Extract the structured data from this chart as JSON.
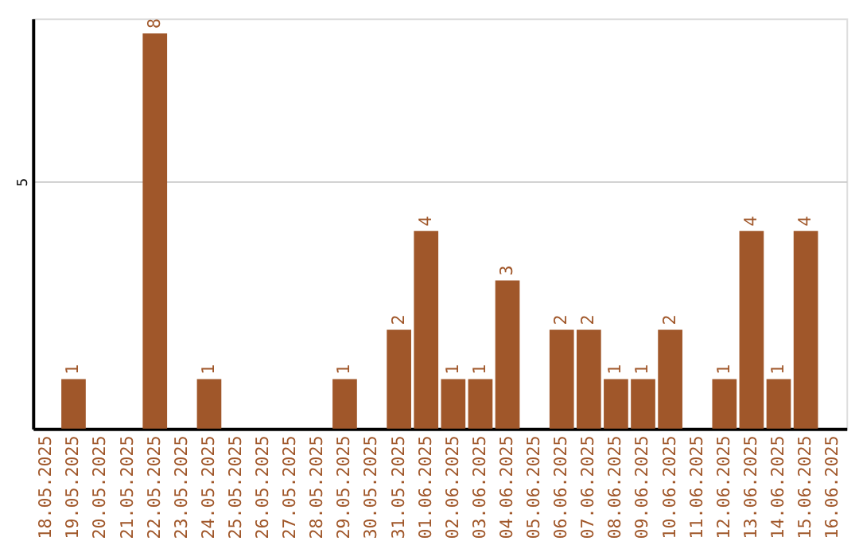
{
  "chart_data": {
    "type": "bar",
    "categories": [
      "18.05.2025",
      "19.05.2025",
      "20.05.2025",
      "21.05.2025",
      "22.05.2025",
      "23.05.2025",
      "24.05.2025",
      "25.05.2025",
      "26.05.2025",
      "27.05.2025",
      "28.05.2025",
      "29.05.2025",
      "30.05.2025",
      "31.05.2025",
      "01.06.2025",
      "02.06.2025",
      "03.06.2025",
      "04.06.2025",
      "05.06.2025",
      "06.06.2025",
      "07.06.2025",
      "08.06.2025",
      "09.06.2025",
      "10.06.2025",
      "11.06.2025",
      "12.06.2025",
      "13.06.2025",
      "14.06.2025",
      "15.06.2025",
      "16.06.2025"
    ],
    "values": [
      null,
      1,
      null,
      null,
      8,
      null,
      1,
      null,
      null,
      null,
      null,
      1,
      null,
      2,
      4,
      1,
      1,
      3,
      null,
      2,
      2,
      1,
      1,
      2,
      null,
      1,
      4,
      1,
      4,
      null
    ],
    "color": "#a0572a",
    "ylim": [
      0,
      8.3
    ],
    "yticks": [
      5
    ],
    "grid": "y",
    "data_labels": true
  }
}
